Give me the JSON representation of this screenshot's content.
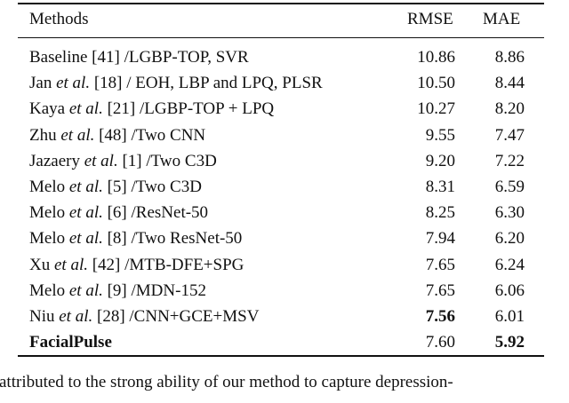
{
  "table": {
    "header": [
      "Methods",
      "RMSE",
      "MAE"
    ],
    "rows": [
      {
        "method": [
          "Baseline [41] /LGBP-TOP, SVR"
        ],
        "rmse": "10.86",
        "mae": "8.86",
        "bold": []
      },
      {
        "method": [
          "Jan ",
          "et al.",
          " [18] / EOH, LBP and LPQ, PLSR"
        ],
        "rmse": "10.50",
        "mae": "8.44",
        "bold": []
      },
      {
        "method": [
          "Kaya ",
          "et al.",
          " [21] /LGBP-TOP + LPQ"
        ],
        "rmse": "10.27",
        "mae": "8.20",
        "bold": []
      },
      {
        "method": [
          "Zhu ",
          "et al.",
          " [48] /Two CNN"
        ],
        "rmse": "9.55",
        "mae": "7.47",
        "bold": []
      },
      {
        "method": [
          "Jazaery ",
          "et al.",
          " [1] /Two C3D"
        ],
        "rmse": "9.20",
        "mae": "7.22",
        "bold": []
      },
      {
        "method": [
          "Melo ",
          "et al.",
          " [5] /Two C3D"
        ],
        "rmse": "8.31",
        "mae": "6.59",
        "bold": []
      },
      {
        "method": [
          "Melo ",
          "et al.",
          " [6] /ResNet-50"
        ],
        "rmse": "8.25",
        "mae": "6.30",
        "bold": []
      },
      {
        "method": [
          "Melo ",
          "et al.",
          " [8] /Two ResNet-50"
        ],
        "rmse": "7.94",
        "mae": "6.20",
        "bold": []
      },
      {
        "method": [
          "Xu ",
          "et al.",
          " [42] /MTB-DFE+SPG"
        ],
        "rmse": "7.65",
        "mae": "6.24",
        "bold": []
      },
      {
        "method": [
          "Melo ",
          "et al.",
          " [9] /MDN-152"
        ],
        "rmse": "7.65",
        "mae": "6.06",
        "bold": []
      },
      {
        "method": [
          "Niu ",
          "et al.",
          " [28] /CNN+GCE+MSV"
        ],
        "rmse": "7.56",
        "mae": "6.01",
        "bold": [
          "rmse"
        ]
      },
      {
        "method": [
          "FacialPulse"
        ],
        "rmse": "7.60",
        "mae": "5.92",
        "bold": [
          "method",
          "mae"
        ]
      }
    ]
  },
  "body_text": "attributed to the strong ability of our method to capture depression-"
}
